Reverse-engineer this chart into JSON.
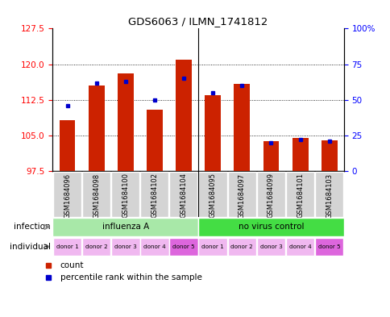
{
  "title": "GDS6063 / ILMN_1741812",
  "samples": [
    "GSM1684096",
    "GSM1684098",
    "GSM1684100",
    "GSM1684102",
    "GSM1684104",
    "GSM1684095",
    "GSM1684097",
    "GSM1684099",
    "GSM1684101",
    "GSM1684103"
  ],
  "counts": [
    108.2,
    115.5,
    118.0,
    110.5,
    121.0,
    113.5,
    115.8,
    103.8,
    104.5,
    104.0
  ],
  "percentiles": [
    46,
    62,
    63,
    50,
    65,
    55,
    60,
    20,
    22,
    21
  ],
  "ylim_left": [
    97.5,
    127.5
  ],
  "yticks_left": [
    97.5,
    105.0,
    112.5,
    120.0,
    127.5
  ],
  "ylim_right": [
    0,
    100
  ],
  "yticks_right": [
    0,
    25,
    50,
    75,
    100
  ],
  "infection_groups": [
    {
      "label": "influenza A",
      "start": 0,
      "end": 5,
      "color": "#a8e8a8"
    },
    {
      "label": "no virus control",
      "start": 5,
      "end": 10,
      "color": "#44dd44"
    }
  ],
  "donor_labels": [
    "donor 1",
    "donor 2",
    "donor 3",
    "donor 4",
    "donor 5",
    "donor 1",
    "donor 2",
    "donor 3",
    "donor 4",
    "donor 5"
  ],
  "donor_colors": [
    "#f0b8f0",
    "#f0b8f0",
    "#f0b8f0",
    "#f0b8f0",
    "#dd66dd",
    "#f0b8f0",
    "#f0b8f0",
    "#f0b8f0",
    "#f0b8f0",
    "#dd66dd"
  ],
  "bar_color": "#cc2200",
  "dot_color": "#0000cc",
  "bar_bottom": 97.5,
  "bar_width": 0.55,
  "sample_bg": "#d4d4d4",
  "plot_bg": "#ffffff"
}
